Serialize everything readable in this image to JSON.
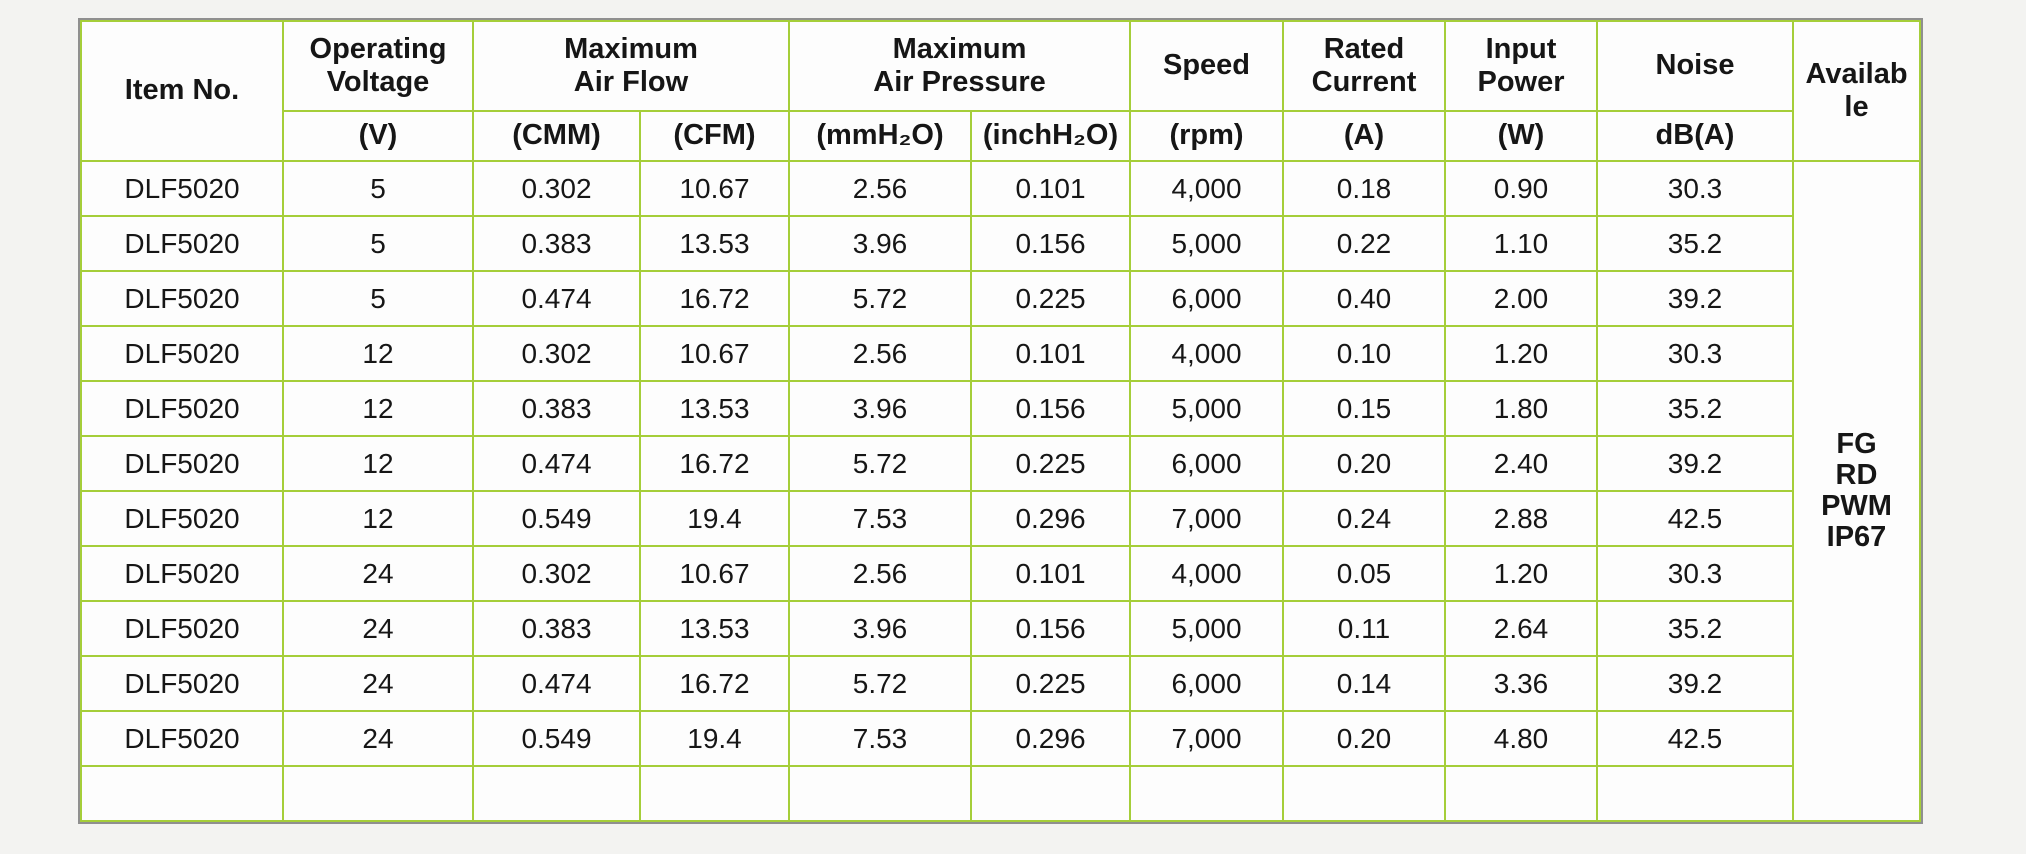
{
  "table": {
    "headers": {
      "item_no": "Item No.",
      "operating_voltage": [
        "Operating",
        "Voltage"
      ],
      "max_air_flow": [
        "Maximum",
        "Air Flow"
      ],
      "max_air_pressure": [
        "Maximum",
        "Air Pressure"
      ],
      "speed": "Speed",
      "rated_current": [
        "Rated",
        "Current"
      ],
      "input_power": [
        "Input",
        "Power"
      ],
      "noise": "Noise",
      "available": "Available"
    },
    "units": {
      "voltage": "(V)",
      "cmm": "(CMM)",
      "cfm": "(CFM)",
      "mmh2o": "(mmH₂O)",
      "inchh2o": "(inchH₂O)",
      "rpm": "(rpm)",
      "amps": "(A)",
      "watts": "(W)",
      "dba": "dB(A)"
    },
    "rows": [
      [
        "DLF5020",
        "5",
        "0.302",
        "10.67",
        "2.56",
        "0.101",
        "4,000",
        "0.18",
        "0.90",
        "30.3"
      ],
      [
        "DLF5020",
        "5",
        "0.383",
        "13.53",
        "3.96",
        "0.156",
        "5,000",
        "0.22",
        "1.10",
        "35.2"
      ],
      [
        "DLF5020",
        "5",
        "0.474",
        "16.72",
        "5.72",
        "0.225",
        "6,000",
        "0.40",
        "2.00",
        "39.2"
      ],
      [
        "DLF5020",
        "12",
        "0.302",
        "10.67",
        "2.56",
        "0.101",
        "4,000",
        "0.10",
        "1.20",
        "30.3"
      ],
      [
        "DLF5020",
        "12",
        "0.383",
        "13.53",
        "3.96",
        "0.156",
        "5,000",
        "0.15",
        "1.80",
        "35.2"
      ],
      [
        "DLF5020",
        "12",
        "0.474",
        "16.72",
        "5.72",
        "0.225",
        "6,000",
        "0.20",
        "2.40",
        "39.2"
      ],
      [
        "DLF5020",
        "12",
        "0.549",
        "19.4",
        "7.53",
        "0.296",
        "7,000",
        "0.24",
        "2.88",
        "42.5"
      ],
      [
        "DLF5020",
        "24",
        "0.302",
        "10.67",
        "2.56",
        "0.101",
        "4,000",
        "0.05",
        "1.20",
        "30.3"
      ],
      [
        "DLF5020",
        "24",
        "0.383",
        "13.53",
        "3.96",
        "0.156",
        "5,000",
        "0.11",
        "2.64",
        "35.2"
      ],
      [
        "DLF5020",
        "24",
        "0.474",
        "16.72",
        "5.72",
        "0.225",
        "6,000",
        "0.14",
        "3.36",
        "39.2"
      ],
      [
        "DLF5020",
        "24",
        "0.549",
        "19.4",
        "7.53",
        "0.296",
        "7,000",
        "0.20",
        "4.80",
        "42.5"
      ],
      [
        "",
        "",
        "",
        "",
        "",
        "",
        "",
        "",
        "",
        ""
      ]
    ],
    "available_values": [
      "FG",
      "RD",
      "PWM",
      "IP67"
    ],
    "colors": {
      "inner_border": "#a5ce39",
      "outer_border": "#8f8f8f"
    }
  }
}
